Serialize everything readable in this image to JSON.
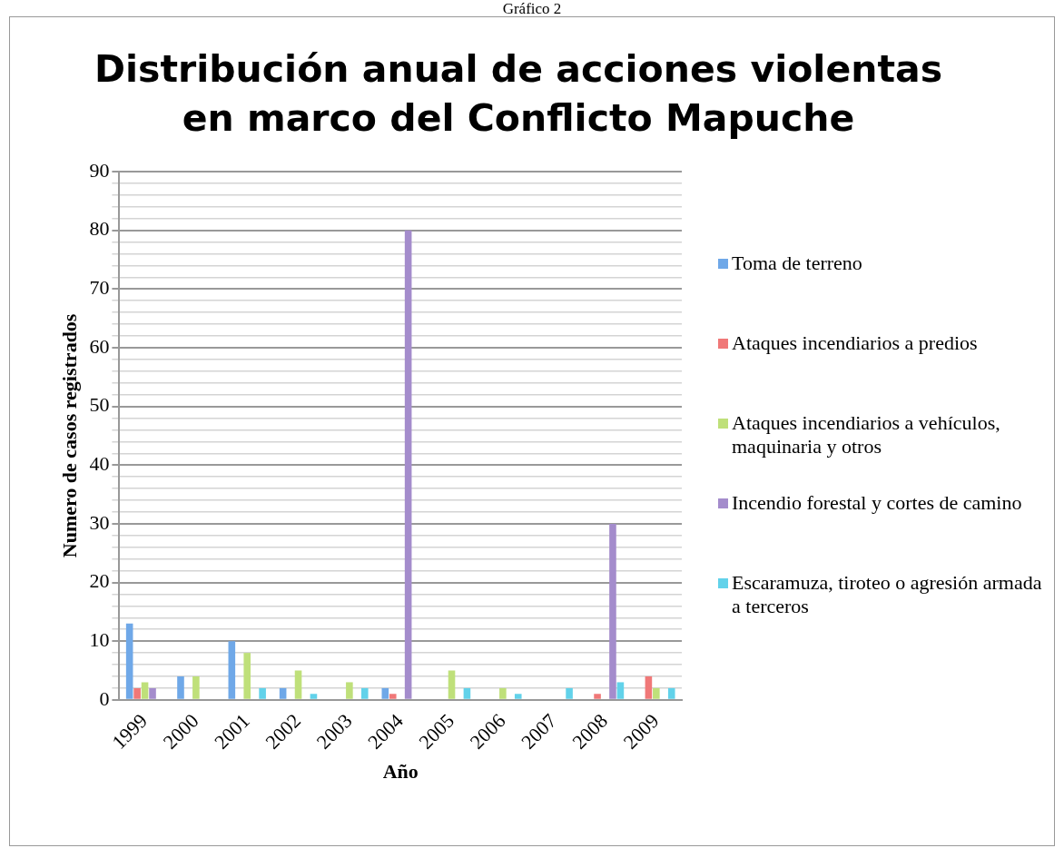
{
  "chart_data": {
    "type": "bar",
    "title": "Distribución anual de acciones violentas en marco del Conflicto Mapuche",
    "xlabel": "Año",
    "ylabel": "Numero de casos registrados",
    "annotations": [
      "Gráfico 2"
    ],
    "categories": [
      "1999",
      "2000",
      "2001",
      "2002",
      "2003",
      "2004",
      "2005",
      "2006",
      "2007",
      "2008",
      "2009"
    ],
    "series": [
      {
        "name": "Toma de terreno",
        "color": "#6fa8e8",
        "values": [
          13,
          4,
          10,
          2,
          0,
          2,
          0,
          0,
          0,
          0,
          0
        ]
      },
      {
        "name": "Ataques incendiarios a predios",
        "color": "#f07878",
        "values": [
          2,
          0,
          0,
          0,
          0,
          1,
          0,
          0,
          0,
          1,
          4
        ]
      },
      {
        "name": "Ataques incendiarios a vehículos, maquinaria y otros",
        "color": "#bfe07a",
        "values": [
          3,
          4,
          8,
          5,
          3,
          0,
          5,
          2,
          0,
          0,
          2
        ]
      },
      {
        "name": "Incendio forestal y cortes de camino",
        "color": "#a48ccc",
        "values": [
          2,
          0,
          0,
          0,
          0,
          80,
          0,
          0,
          0,
          30,
          0
        ]
      },
      {
        "name": "Escaramuza, tiroteo o agresión armada a terceros",
        "color": "#62d2ea",
        "values": [
          0,
          0,
          2,
          1,
          2,
          0,
          2,
          1,
          2,
          3,
          2
        ]
      }
    ],
    "ylim": [
      0,
      90
    ],
    "yticks": [
      0,
      {
        "value": 2,
        "label": null
      },
      {
        "value": 4,
        "label": null
      },
      {
        "value": 6,
        "label": null
      },
      {
        "value": 8,
        "label": null
      },
      10,
      {
        "value": 12,
        "label": null
      },
      {
        "value": 14,
        "label": null
      },
      {
        "value": 16,
        "label": null
      },
      {
        "value": 18,
        "label": null
      },
      20,
      {
        "value": 22,
        "label": null
      },
      {
        "value": 24,
        "label": null
      },
      {
        "value": 26,
        "label": null
      },
      {
        "value": 28,
        "label": null
      },
      30,
      {
        "value": 32,
        "label": null
      },
      {
        "value": 34,
        "label": null
      },
      {
        "value": 36,
        "label": null
      },
      {
        "value": 38,
        "label": null
      },
      40,
      {
        "value": 42,
        "label": null
      },
      {
        "value": 44,
        "label": null
      },
      {
        "value": 46,
        "label": null
      },
      {
        "value": 48,
        "label": null
      },
      50,
      {
        "value": 52,
        "label": null
      },
      {
        "value": 54,
        "label": null
      },
      {
        "value": 56,
        "label": null
      },
      {
        "value": 58,
        "label": null
      },
      60,
      {
        "value": 62,
        "label": null
      },
      {
        "value": 64,
        "label": null
      },
      {
        "value": 66,
        "label": null
      },
      {
        "value": 68,
        "label": null
      },
      70,
      {
        "value": 72,
        "label": null
      },
      {
        "value": 74,
        "label": null
      },
      {
        "value": 76,
        "label": null
      },
      {
        "value": 78,
        "label": null
      },
      80,
      {
        "value": 82,
        "label": null
      },
      {
        "value": 84,
        "label": null
      },
      {
        "value": 86,
        "label": null
      },
      {
        "value": 88,
        "label": null
      },
      90
    ],
    "grid": "y",
    "legend": "right"
  }
}
